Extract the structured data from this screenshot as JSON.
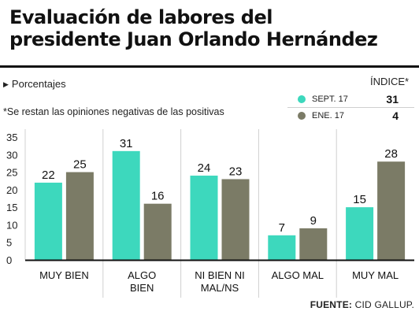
{
  "title": {
    "line1": "Evaluación de labores del",
    "line2": "presidente Juan Orlando Hernández"
  },
  "subtitle": {
    "marker": "▶",
    "units": "Porcentajes",
    "note": "*Se restan las opiniones negativas de las positivas"
  },
  "index_legend": {
    "header": "ÍNDICE*",
    "rows": [
      {
        "label": "SEPT. 17",
        "value": "31",
        "color": "#3dd8bd"
      },
      {
        "label": "ENE. 17",
        "value": "4",
        "color": "#7b7b66"
      }
    ]
  },
  "chart_data": {
    "type": "bar",
    "categories": [
      "MUY BIEN",
      "ALGO BIEN",
      "NI BIEN NI MAL/NS",
      "ALGO MAL",
      "MUY MAL"
    ],
    "category_lines": [
      [
        "MUY BIEN"
      ],
      [
        "ALGO",
        "BIEN"
      ],
      [
        "NI BIEN NI",
        "MAL/NS"
      ],
      [
        "ALGO MAL"
      ],
      [
        "MUY MAL"
      ]
    ],
    "series": [
      {
        "name": "SEPT. 17",
        "values": [
          22,
          31,
          24,
          7,
          15
        ],
        "color": "#3dd8bd"
      },
      {
        "name": "ENE. 17",
        "values": [
          25,
          16,
          23,
          9,
          28
        ],
        "color": "#7b7b66"
      }
    ],
    "yticks": [
      0,
      5,
      10,
      15,
      20,
      25,
      30,
      35
    ],
    "ylim": [
      0,
      35
    ],
    "grid": false
  },
  "footer": {
    "source_label": "FUENTE:",
    "source_text": "CID GALLUP."
  }
}
